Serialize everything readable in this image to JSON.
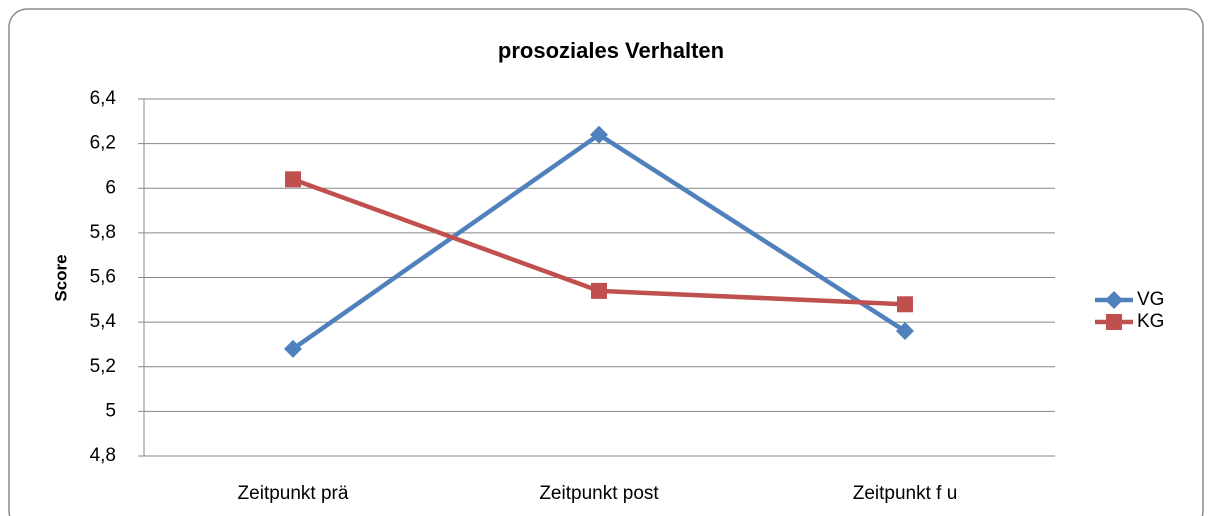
{
  "chart_data": {
    "type": "line",
    "title": "prosoziales Verhalten",
    "y_label": "Score",
    "categories": [
      "Zeitpunkt prä",
      "Zeitpunkt post",
      "Zeitpunkt f u"
    ],
    "series": [
      {
        "name": "VG",
        "color": "#4f81bd",
        "marker": "diamond",
        "values": [
          5.28,
          6.24,
          5.36
        ]
      },
      {
        "name": "KG",
        "color": "#c0504d",
        "marker": "square",
        "values": [
          6.04,
          5.54,
          5.48
        ]
      }
    ],
    "ylim": [
      4.8,
      6.4
    ],
    "yticks": [
      {
        "value": 4.8,
        "label": "4,8"
      },
      5,
      {
        "value": 5.2,
        "label": "5,2"
      },
      {
        "value": 5.4,
        "label": "5,4"
      },
      {
        "value": 5.6,
        "label": "5,6"
      },
      {
        "value": 5.8,
        "label": "5,8"
      },
      6,
      {
        "value": 6.2,
        "label": "6,2"
      },
      {
        "value": 6.4,
        "label": "6,4"
      }
    ],
    "grid": true,
    "legend": "right"
  }
}
